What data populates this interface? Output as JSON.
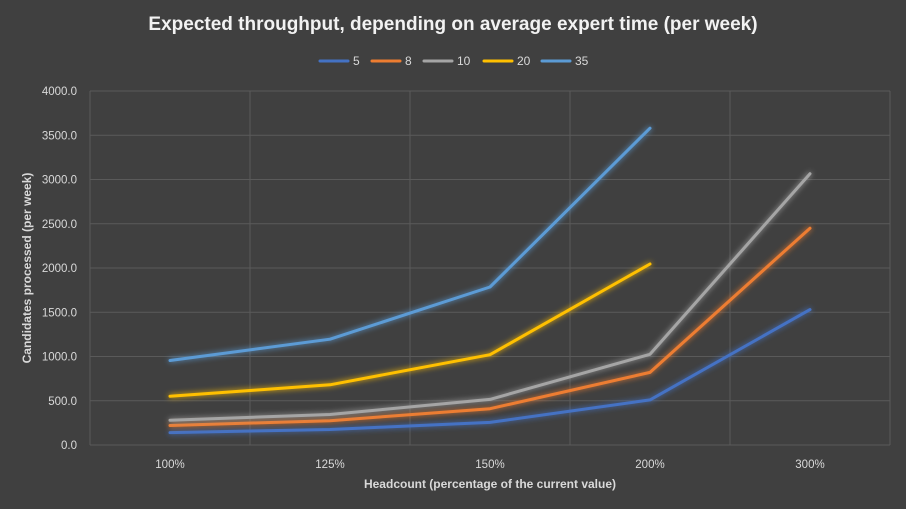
{
  "chart_data": {
    "type": "line",
    "title": "Expected throughput, depending on average expert time (per week)",
    "xlabel": "Headcount (percentage of the current value)",
    "ylabel": "Candidates processed (per week)",
    "categories": [
      "100%",
      "125%",
      "150%",
      "200%",
      "300%"
    ],
    "ylim": [
      0,
      4000
    ],
    "yticks": [
      "0.0",
      "500.0",
      "1000.0",
      "1500.0",
      "2000.0",
      "2500.0",
      "3000.0",
      "3500.0",
      "4000.0"
    ],
    "grid": true,
    "legend_position": "top",
    "series": [
      {
        "name": "5",
        "color": "#4472c4",
        "values": [
          140,
          175,
          255,
          510,
          1530
        ]
      },
      {
        "name": "8",
        "color": "#ed7d31",
        "values": [
          220,
          275,
          410,
          820,
          2450
        ]
      },
      {
        "name": "10",
        "color": "#a5a5a5",
        "values": [
          280,
          345,
          515,
          1025,
          3065
        ]
      },
      {
        "name": "20",
        "color": "#ffc000",
        "values": [
          550,
          680,
          1020,
          2045,
          null
        ]
      },
      {
        "name": "35",
        "color": "#5b9bd5",
        "values": [
          955,
          1195,
          1785,
          3580,
          null
        ]
      }
    ]
  }
}
